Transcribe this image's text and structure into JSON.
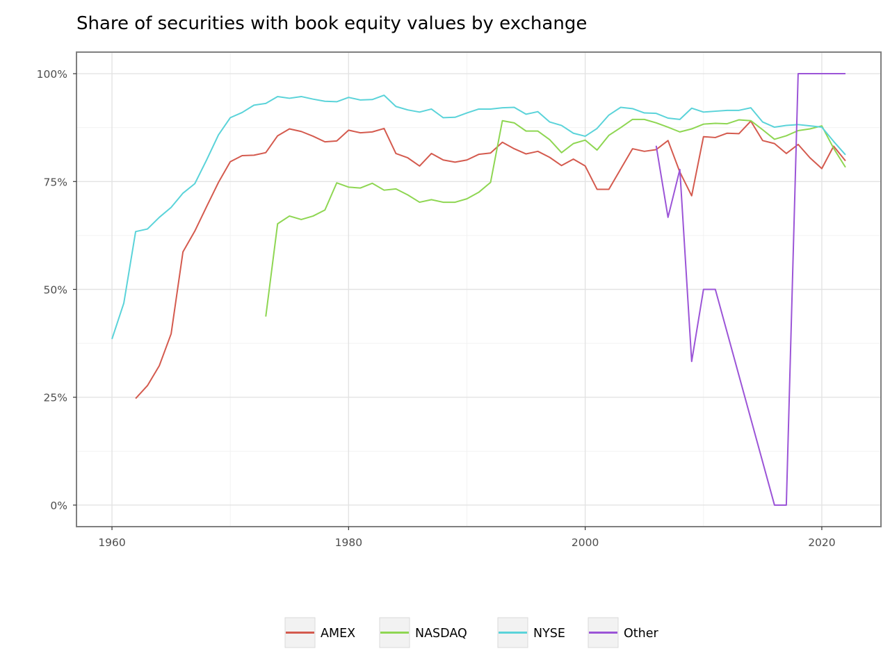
{
  "chart_data": {
    "type": "line",
    "title": "Share of securities with book equity values by exchange",
    "xlabel": "",
    "ylabel": "",
    "xlim": [
      1957,
      2025
    ],
    "ylim": [
      -0.05,
      1.05
    ],
    "x_ticks": [
      1960,
      1980,
      2000,
      2020
    ],
    "x_tick_labels": [
      "1960",
      "1980",
      "2000",
      "2020"
    ],
    "y_ticks": [
      0,
      0.25,
      0.5,
      0.75,
      1.0
    ],
    "y_tick_labels": [
      "0%",
      "25%",
      "50%",
      "75%",
      "100%"
    ],
    "grid": true,
    "legend_position": "bottom",
    "series": [
      {
        "name": "AMEX",
        "color": "#d45a4e",
        "x": [
          1962,
          1963,
          1964,
          1965,
          1966,
          1967,
          1968,
          1969,
          1970,
          1971,
          1972,
          1973,
          1974,
          1975,
          1976,
          1977,
          1978,
          1979,
          1980,
          1981,
          1982,
          1983,
          1984,
          1985,
          1986,
          1987,
          1988,
          1989,
          1990,
          1991,
          1992,
          1993,
          1994,
          1995,
          1996,
          1997,
          1998,
          1999,
          2000,
          2001,
          2002,
          2003,
          2004,
          2005,
          2006,
          2007,
          2008,
          2009,
          2010,
          2011,
          2012,
          2013,
          2014,
          2015,
          2016,
          2017,
          2018,
          2019,
          2020,
          2021,
          2022
        ],
        "y": [
          0.247,
          0.277,
          0.323,
          0.397,
          0.587,
          0.635,
          0.692,
          0.748,
          0.796,
          0.81,
          0.811,
          0.817,
          0.856,
          0.872,
          0.866,
          0.855,
          0.842,
          0.844,
          0.869,
          0.863,
          0.865,
          0.873,
          0.815,
          0.805,
          0.786,
          0.815,
          0.8,
          0.795,
          0.8,
          0.813,
          0.816,
          0.841,
          0.826,
          0.814,
          0.82,
          0.806,
          0.787,
          0.802,
          0.786,
          0.732,
          0.732,
          0.779,
          0.826,
          0.82,
          0.824,
          0.845,
          0.772,
          0.717,
          0.854,
          0.852,
          0.862,
          0.861,
          0.89,
          0.845,
          0.838,
          0.815,
          0.836,
          0.805,
          0.78,
          0.832,
          0.798
        ]
      },
      {
        "name": "NASDAQ",
        "color": "#8ed652",
        "x": [
          1973,
          1974,
          1975,
          1976,
          1977,
          1978,
          1979,
          1980,
          1981,
          1982,
          1983,
          1984,
          1985,
          1986,
          1987,
          1988,
          1989,
          1990,
          1991,
          1992,
          1993,
          1994,
          1995,
          1996,
          1997,
          1998,
          1999,
          2000,
          2001,
          2002,
          2003,
          2004,
          2005,
          2006,
          2007,
          2008,
          2009,
          2010,
          2011,
          2012,
          2013,
          2014,
          2015,
          2016,
          2017,
          2018,
          2019,
          2020,
          2021,
          2022
        ],
        "y": [
          0.437,
          0.652,
          0.67,
          0.662,
          0.67,
          0.684,
          0.747,
          0.737,
          0.735,
          0.746,
          0.73,
          0.733,
          0.719,
          0.702,
          0.708,
          0.702,
          0.702,
          0.71,
          0.725,
          0.748,
          0.891,
          0.886,
          0.867,
          0.867,
          0.847,
          0.817,
          0.838,
          0.846,
          0.823,
          0.857,
          0.875,
          0.894,
          0.894,
          0.886,
          0.876,
          0.865,
          0.872,
          0.883,
          0.885,
          0.884,
          0.893,
          0.891,
          0.87,
          0.848,
          0.856,
          0.868,
          0.872,
          0.879,
          0.827,
          0.783
        ]
      },
      {
        "name": "NYSE",
        "color": "#5ad3d9",
        "x": [
          1960,
          1961,
          1962,
          1963,
          1964,
          1965,
          1966,
          1967,
          1968,
          1969,
          1970,
          1971,
          1972,
          1973,
          1974,
          1975,
          1976,
          1977,
          1978,
          1979,
          1980,
          1981,
          1982,
          1983,
          1984,
          1985,
          1986,
          1987,
          1988,
          1989,
          1990,
          1991,
          1992,
          1993,
          1994,
          1995,
          1996,
          1997,
          1998,
          1999,
          2000,
          2001,
          2002,
          2003,
          2004,
          2005,
          2006,
          2007,
          2008,
          2009,
          2010,
          2011,
          2012,
          2013,
          2014,
          2015,
          2016,
          2017,
          2018,
          2019,
          2020,
          2021,
          2022
        ],
        "y": [
          0.385,
          0.468,
          0.634,
          0.64,
          0.667,
          0.69,
          0.723,
          0.745,
          0.8,
          0.858,
          0.898,
          0.91,
          0.927,
          0.931,
          0.947,
          0.943,
          0.947,
          0.941,
          0.936,
          0.935,
          0.945,
          0.939,
          0.94,
          0.95,
          0.924,
          0.916,
          0.911,
          0.918,
          0.898,
          0.899,
          0.909,
          0.918,
          0.918,
          0.921,
          0.922,
          0.906,
          0.912,
          0.888,
          0.88,
          0.862,
          0.855,
          0.873,
          0.904,
          0.922,
          0.919,
          0.909,
          0.908,
          0.897,
          0.894,
          0.92,
          0.911,
          0.913,
          0.915,
          0.915,
          0.921,
          0.888,
          0.876,
          0.88,
          0.882,
          0.879,
          0.876,
          0.843,
          0.812
        ]
      },
      {
        "name": "Other",
        "color": "#9b54d7",
        "x": [
          2006,
          2007,
          2008,
          2009,
          2010,
          2011,
          2016,
          2017,
          2018,
          2019,
          2020,
          2021,
          2022
        ],
        "y": [
          0.833,
          0.667,
          0.778,
          0.333,
          0.5,
          0.5,
          0.0,
          0.0,
          1.0,
          1.0,
          1.0,
          1.0,
          1.0
        ]
      }
    ]
  }
}
